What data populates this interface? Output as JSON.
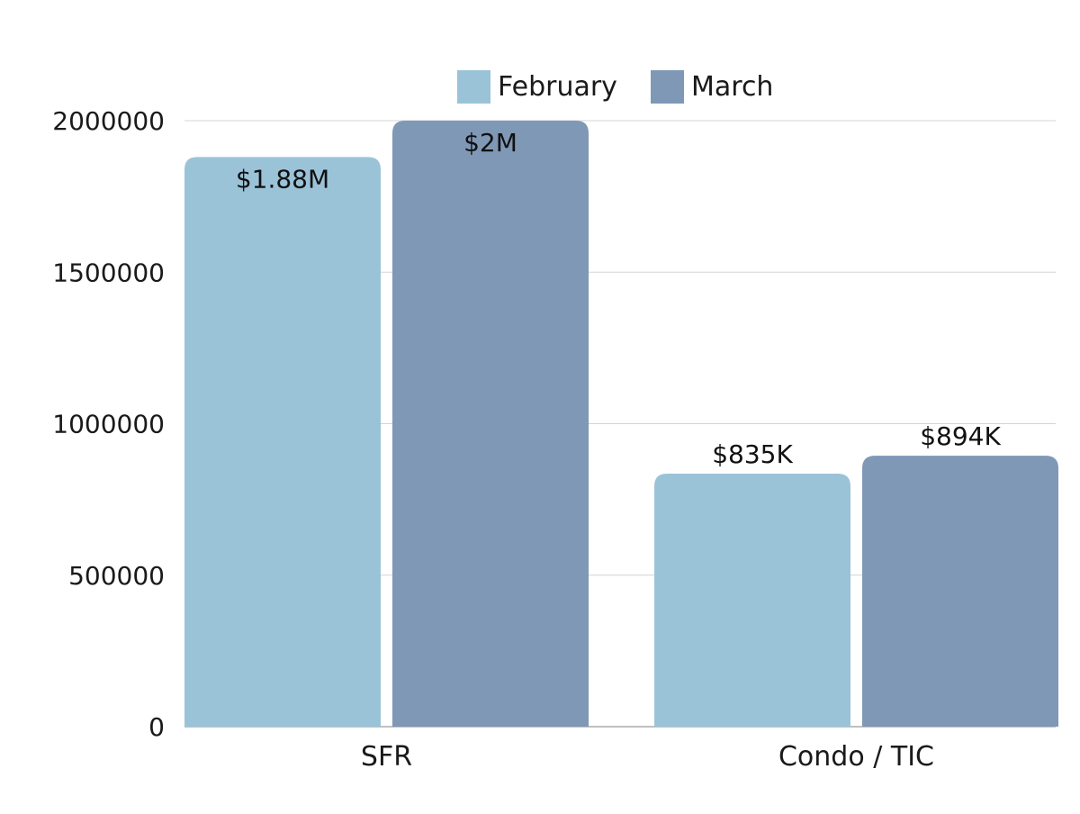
{
  "chart_data": {
    "type": "bar",
    "title": "",
    "xlabel": "",
    "ylabel": "",
    "categories": [
      "SFR",
      "Condo / TIC"
    ],
    "series": [
      {
        "name": "February",
        "color": "#9bc3d8",
        "values": [
          1880000,
          835000
        ],
        "labels": [
          "$1.88M",
          "$835K"
        ]
      },
      {
        "name": "March",
        "color": "#7f98b6",
        "values": [
          2000000,
          894000
        ],
        "labels": [
          "$2M",
          "$894K"
        ]
      }
    ],
    "ylim": [
      0,
      2000000
    ],
    "yticks": [
      0,
      500000,
      1000000,
      1500000,
      2000000
    ],
    "ytick_labels": [
      "0",
      "500000",
      "1000000",
      "1500000",
      "2000000"
    ],
    "grid": true,
    "legend_position": "top-center"
  }
}
